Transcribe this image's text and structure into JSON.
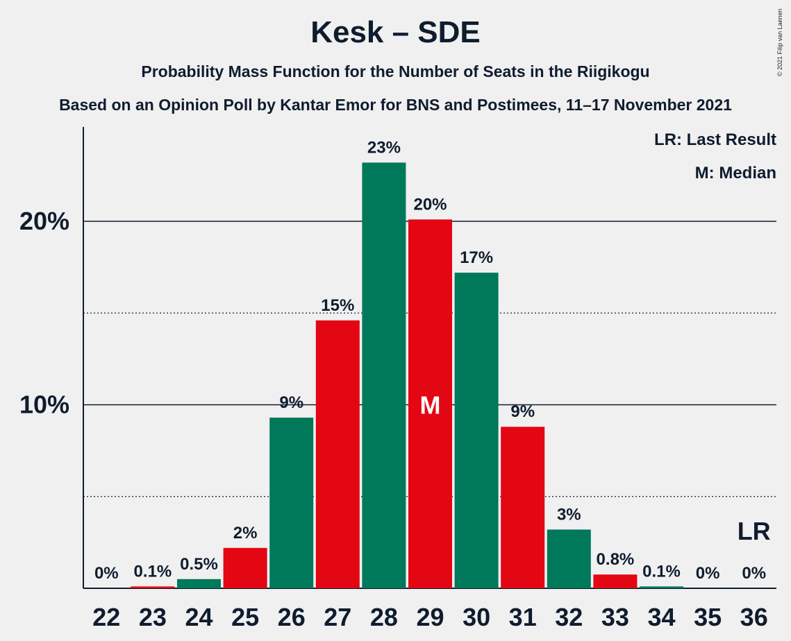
{
  "header": {
    "title": "Kesk – SDE",
    "subtitle": "Probability Mass Function for the Number of Seats in the Riigikogu",
    "source": "Based on an Opinion Poll by Kantar Emor for BNS and Postimees, 11–17 November 2021",
    "copyright": "© 2021 Filip van Laenen"
  },
  "legend": {
    "last_result": "LR: Last Result",
    "median": "M: Median"
  },
  "colors": {
    "green": "#00785a",
    "red": "#e30613",
    "text": "#0f1c2e",
    "background": "#f0f0f0"
  },
  "chart_data": {
    "type": "bar",
    "categories": [
      "22",
      "23",
      "24",
      "25",
      "26",
      "27",
      "28",
      "29",
      "30",
      "31",
      "32",
      "33",
      "34",
      "35",
      "36"
    ],
    "values": [
      0,
      0.1,
      0.5,
      2.2,
      9.3,
      14.6,
      23.2,
      20.1,
      17.2,
      8.8,
      3.2,
      0.75,
      0.1,
      0,
      0
    ],
    "labels": [
      "0%",
      "0.1%",
      "0.5%",
      "2%",
      "9%",
      "15%",
      "23%",
      "20%",
      "17%",
      "9%",
      "3%",
      "0.8%",
      "0.1%",
      "0%",
      "0%"
    ],
    "bar_colors": [
      "green",
      "red",
      "green",
      "red",
      "green",
      "red",
      "green",
      "red",
      "green",
      "red",
      "green",
      "red",
      "green",
      "red",
      "green"
    ],
    "median_category": "29",
    "median_marker": "M",
    "last_result_category": "36",
    "last_result_marker": "LR",
    "y_ticks": [
      {
        "value": 10,
        "label": "10%"
      },
      {
        "value": 20,
        "label": "20%"
      }
    ],
    "minor_gridlines": [
      5,
      15
    ],
    "ylim": [
      0,
      25
    ],
    "legend_position": "top-right"
  }
}
